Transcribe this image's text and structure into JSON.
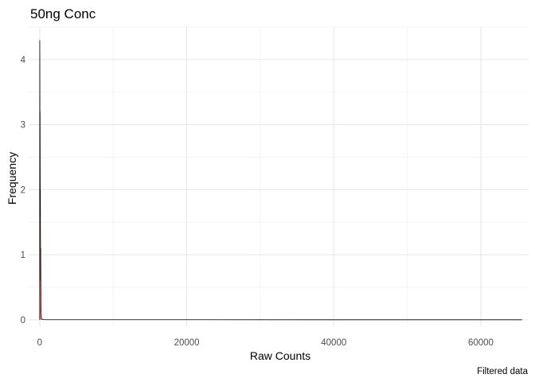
{
  "chart_data": {
    "type": "area",
    "title": "50ng Conc",
    "xlabel": "Raw Counts",
    "ylabel": "Frequency",
    "caption": "Filtered data",
    "xlim": [
      -1500,
      66500
    ],
    "ylim": [
      -0.1,
      4.5
    ],
    "x_ticks": [
      {
        "value": 0,
        "label": "0"
      },
      {
        "value": 20000,
        "label": "20000"
      },
      {
        "value": 40000,
        "label": "40000"
      },
      {
        "value": 60000,
        "label": "60000"
      }
    ],
    "y_ticks": [
      {
        "value": 0,
        "label": "0"
      },
      {
        "value": 1,
        "label": "1"
      },
      {
        "value": 2,
        "label": "2"
      },
      {
        "value": 3,
        "label": "3"
      },
      {
        "value": 4,
        "label": "4"
      }
    ],
    "grid": true,
    "legend": "none",
    "series": [
      {
        "x": [
          0,
          10,
          20,
          30,
          40,
          50,
          60,
          70,
          80,
          90,
          100,
          110,
          120,
          130,
          140,
          150,
          160,
          170,
          180,
          190,
          200,
          210,
          220,
          230,
          240,
          260,
          300,
          400,
          600,
          1000,
          65600
        ],
        "values": [
          0,
          4.3,
          3.9,
          3.25,
          2.9,
          3.2,
          2.6,
          2.1,
          1.6,
          2.0,
          1.5,
          1.2,
          0.9,
          0.6,
          1.1,
          0.8,
          0.5,
          0.3,
          0.2,
          0.15,
          0.1,
          0.08,
          0.06,
          0.04,
          0.03,
          0.02,
          0.01,
          0.005,
          0.002,
          0.001,
          0.0
        ],
        "line_color": "#000000",
        "fill_color": "#f8766d"
      }
    ]
  }
}
